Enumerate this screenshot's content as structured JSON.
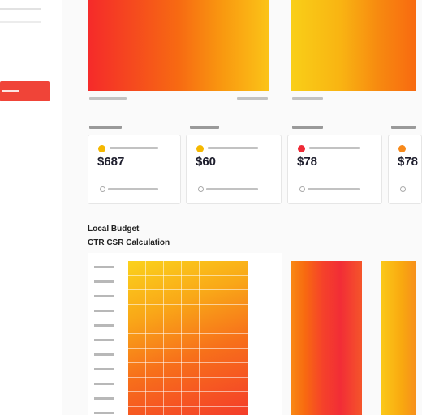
{
  "cards": [
    {
      "value": "$687"
    },
    {
      "value": "$60"
    },
    {
      "value": "$78"
    },
    {
      "value": "$78"
    }
  ],
  "section": {
    "title": "Local Budget",
    "subtitle": "CTR CSR Calculation"
  }
}
